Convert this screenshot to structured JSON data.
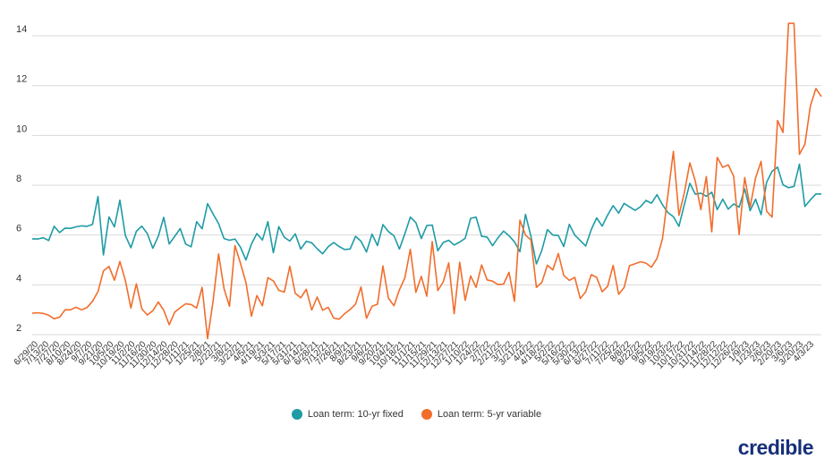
{
  "chart_data": {
    "type": "line",
    "y_ticks": [
      2,
      4,
      6,
      8,
      10,
      12,
      14
    ],
    "ylim": [
      1.3,
      14.8
    ],
    "grid": true,
    "legend_position": "bottom-center",
    "x_tick_labels": [
      "6/29/20",
      "7/13/20",
      "7/27/20",
      "8/10/20",
      "8/24/20",
      "9/7/20",
      "9/21/20",
      "10/5/20",
      "10/19/20",
      "11/2/20",
      "11/16/20",
      "11/30/20",
      "12/14/20",
      "12/28/20",
      "1/11/21",
      "1/25/21",
      "2/8/21",
      "2/22/21",
      "3/8/21",
      "3/22/21",
      "4/5/21",
      "4/19/21",
      "5/3/21",
      "5/17/21",
      "5/31/21",
      "6/14/21",
      "6/28/21",
      "7/12/21",
      "7/26/21",
      "8/9/21",
      "8/23/21",
      "9/6/21",
      "9/20/21",
      "10/4/21",
      "10/18/21",
      "11/1/21",
      "11/15/21",
      "11/29/21",
      "12/13/21",
      "12/27/21",
      "1/10/22",
      "1/24/22",
      "2/7/22",
      "2/21/22",
      "3/7/22",
      "3/21/22",
      "4/4/22",
      "4/18/22",
      "5/2/22",
      "5/16/22",
      "5/30/22",
      "6/13/22",
      "6/27/22",
      "7/11/22",
      "7/25/22",
      "8/8/22",
      "8/22/22",
      "9/5/22",
      "9/19/22",
      "10/3/22",
      "10/17/22",
      "10/31/22",
      "11/14/22",
      "11/28/22",
      "12/12/22",
      "12/26/22",
      "1/9/23",
      "1/23/23",
      "2/6/23",
      "2/20/23",
      "3/6/23",
      "3/20/23",
      "4/3/23"
    ],
    "series": [
      {
        "name": "Loan term: 10-yr fixed",
        "color": "#1e9ba5",
        "values": [
          5.85,
          5.84,
          5.89,
          5.78,
          6.35,
          6.1,
          6.28,
          6.27,
          6.33,
          6.37,
          6.35,
          6.43,
          7.55,
          5.2,
          6.73,
          6.33,
          7.4,
          5.98,
          5.49,
          6.15,
          6.36,
          6.06,
          5.47,
          5.95,
          6.71,
          5.64,
          5.95,
          6.26,
          5.64,
          5.53,
          6.54,
          6.25,
          7.26,
          6.85,
          6.46,
          5.86,
          5.79,
          5.84,
          5.51,
          5.0,
          5.64,
          6.06,
          5.8,
          6.54,
          5.29,
          6.34,
          5.91,
          5.76,
          6.05,
          5.44,
          5.75,
          5.69,
          5.45,
          5.25,
          5.53,
          5.7,
          5.54,
          5.42,
          5.44,
          5.95,
          5.75,
          5.32,
          6.04,
          5.58,
          6.42,
          6.14,
          5.97,
          5.44,
          6.05,
          6.72,
          6.5,
          5.86,
          6.38,
          6.4,
          5.37,
          5.7,
          5.79,
          5.6,
          5.72,
          5.87,
          6.67,
          6.72,
          5.95,
          5.92,
          5.57,
          5.89,
          6.16,
          5.97,
          5.73,
          5.33,
          6.83,
          5.95,
          4.84,
          5.39,
          6.22,
          6.0,
          5.98,
          5.54,
          6.43,
          6.0,
          5.78,
          5.56,
          6.22,
          6.69,
          6.36,
          6.8,
          7.18,
          6.88,
          7.27,
          7.13,
          6.99,
          7.14,
          7.39,
          7.28,
          7.62,
          7.22,
          6.9,
          6.74,
          6.35,
          7.23,
          8.08,
          7.64,
          7.68,
          7.56,
          7.72,
          7.02,
          7.44,
          7.04,
          7.25,
          7.12,
          7.85,
          6.98,
          7.44,
          6.82,
          8.12,
          8.56,
          8.73,
          8.02,
          7.9,
          7.95,
          8.85,
          7.15,
          7.42,
          7.65,
          7.65
        ]
      },
      {
        "name": "Loan term: 5-yr variable",
        "color": "#f26d2b",
        "values": [
          2.86,
          2.88,
          2.85,
          2.78,
          2.64,
          2.7,
          3.0,
          3.0,
          3.1,
          3.0,
          3.09,
          3.34,
          3.73,
          4.56,
          4.74,
          4.19,
          4.94,
          4.18,
          3.07,
          4.04,
          3.04,
          2.79,
          2.96,
          3.31,
          2.98,
          2.4,
          2.91,
          3.08,
          3.24,
          3.21,
          3.07,
          3.9,
          1.84,
          3.33,
          5.24,
          3.84,
          3.14,
          5.58,
          4.86,
          4.1,
          2.74,
          3.57,
          3.16,
          4.29,
          4.16,
          3.78,
          3.71,
          4.75,
          3.66,
          3.48,
          3.82,
          2.99,
          3.51,
          2.98,
          3.1,
          2.67,
          2.62,
          2.84,
          3.01,
          3.23,
          3.92,
          2.66,
          3.14,
          3.22,
          4.76,
          3.47,
          3.16,
          3.8,
          4.28,
          5.43,
          3.7,
          4.34,
          3.54,
          5.74,
          3.77,
          4.12,
          4.88,
          2.84,
          4.91,
          3.38,
          4.36,
          3.9,
          4.8,
          4.2,
          4.15,
          4.01,
          4.03,
          4.5,
          3.34,
          6.6,
          6.0,
          5.8,
          3.9,
          4.1,
          4.79,
          4.6,
          5.26,
          4.38,
          4.18,
          4.3,
          3.45,
          3.72,
          4.41,
          4.3,
          3.72,
          3.94,
          4.78,
          3.62,
          3.89,
          4.77,
          4.85,
          4.93,
          4.87,
          4.71,
          5.06,
          5.85,
          7.62,
          9.36,
          6.79,
          7.71,
          8.9,
          8.17,
          7.02,
          8.35,
          6.13,
          9.12,
          8.72,
          8.82,
          8.36,
          6.02,
          8.31,
          7.12,
          8.3,
          8.96,
          6.96,
          6.72,
          10.6,
          10.12,
          14.5,
          14.5,
          9.24,
          9.65,
          11.2,
          11.88,
          11.56
        ]
      }
    ]
  },
  "legend": {
    "series1": "Loan term: 10-yr fixed",
    "series2": "Loan term: 5-yr variable"
  },
  "brand": {
    "text": "credible",
    "color": "#18307a"
  }
}
